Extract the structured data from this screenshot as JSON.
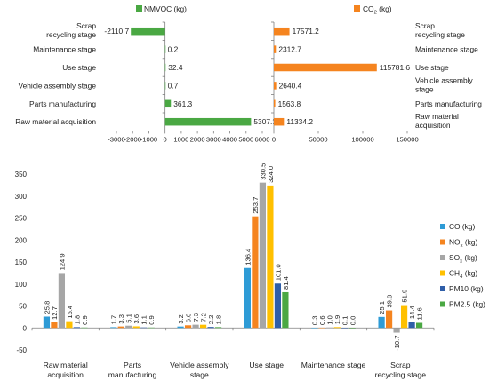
{
  "stage_labels_top": [
    "Scrap recycling stage",
    "Maintenance stage",
    "Use stage",
    "Vehicle assembly stage",
    "Parts manufacturing",
    "Raw material acquisition"
  ],
  "chart_data": [
    {
      "type": "bar",
      "orientation": "horizontal",
      "categories": [
        "Scrap recycling stage",
        "Maintenance stage",
        "Use stage",
        "Vehicle assembly stage",
        "Parts manufacturing",
        "Raw material acquisition"
      ],
      "series": [
        {
          "name": "NMVOC (kg)",
          "values": [
            -2110.7,
            0.2,
            32.4,
            0.7,
            361.3,
            5307.3
          ],
          "color": "#4aa843"
        }
      ],
      "data_labels": [
        "-2110.7",
        "0.2",
        "32.4",
        "0.7",
        "361.3",
        "5307.3"
      ],
      "xlim": [
        -3000,
        6000
      ],
      "xticks": [
        -3000,
        -2000,
        -1000,
        0,
        1000,
        2000,
        3000,
        4000,
        5000,
        6000
      ],
      "legend_position": "top"
    },
    {
      "type": "bar",
      "orientation": "horizontal",
      "categories": [
        "Scrap recycling stage",
        "Maintenance stage",
        "Use stage",
        "Vehicle assembly stage",
        "Parts manufacturing",
        "Raw material acquisition"
      ],
      "series": [
        {
          "name": "CO₂ (kg)",
          "values": [
            17571.2,
            2312.7,
            115781.6,
            2640.4,
            1563.8,
            11334.2
          ],
          "color": "#f5841f"
        }
      ],
      "data_labels": [
        "17571.2",
        "2312.7",
        "115781.6",
        "2640.4",
        "1563.8",
        "11334.2"
      ],
      "xlim": [
        0,
        150000
      ],
      "xticks": [
        0,
        50000,
        100000,
        150000
      ],
      "legend_position": "top"
    },
    {
      "type": "bar",
      "orientation": "vertical",
      "categories": [
        "Raw material acquisition",
        "Parts manufacturing",
        "Vehicle assembly stage",
        "Use stage",
        "Maintenance stage",
        "Scrap recycling stage"
      ],
      "series": [
        {
          "name": "CO (kg)",
          "values": [
            25.8,
            1.7,
            3.2,
            136.4,
            0.3,
            25.1
          ],
          "labels": [
            "25.8",
            "1.7",
            "3.2",
            "136.4",
            "0.3",
            "25.1"
          ],
          "color": "#2e9bd6"
        },
        {
          "name": "NOₓ (kg)",
          "values": [
            12.7,
            3.3,
            6.0,
            253.7,
            0.6,
            39.8
          ],
          "labels": [
            "12.7",
            "3.3",
            "6.0",
            "253.7",
            "0.6",
            "39.8"
          ],
          "color": "#f5841f"
        },
        {
          "name": "SOₓ (kg)",
          "values": [
            124.9,
            5.1,
            7.3,
            330.5,
            1.0,
            -10.7
          ],
          "labels": [
            "124.9",
            "5.1",
            "7.3",
            "330.5",
            "1.0",
            "-10.7"
          ],
          "color": "#a6a6a6"
        },
        {
          "name": "CH₄ (kg)",
          "values": [
            15.4,
            3.6,
            7.2,
            324.0,
            1.9,
            51.9
          ],
          "labels": [
            "15.4",
            "3.6",
            "7.2",
            "324.0",
            "1.9",
            "51.9"
          ],
          "color": "#ffc000"
        },
        {
          "name": "PM10 (kg)",
          "values": [
            1.8,
            1.1,
            2.2,
            101.0,
            0.1,
            14.4
          ],
          "labels": [
            "1.8",
            "1.1",
            "2.2",
            "101.0",
            "0.1",
            "14.4"
          ],
          "color": "#2f5ea8"
        },
        {
          "name": "PM2.5 (kg)",
          "values": [
            0.9,
            0.9,
            1.8,
            81.4,
            0.0,
            11.6
          ],
          "labels": [
            "0.9",
            "0.9",
            "1.8",
            "81.4",
            "0.0",
            "11.6"
          ],
          "color": "#4aa843"
        }
      ],
      "ylim": [
        -50,
        350
      ],
      "yticks": [
        -50,
        0,
        50,
        100,
        150,
        200,
        250,
        300,
        350
      ],
      "legend_position": "right"
    }
  ]
}
